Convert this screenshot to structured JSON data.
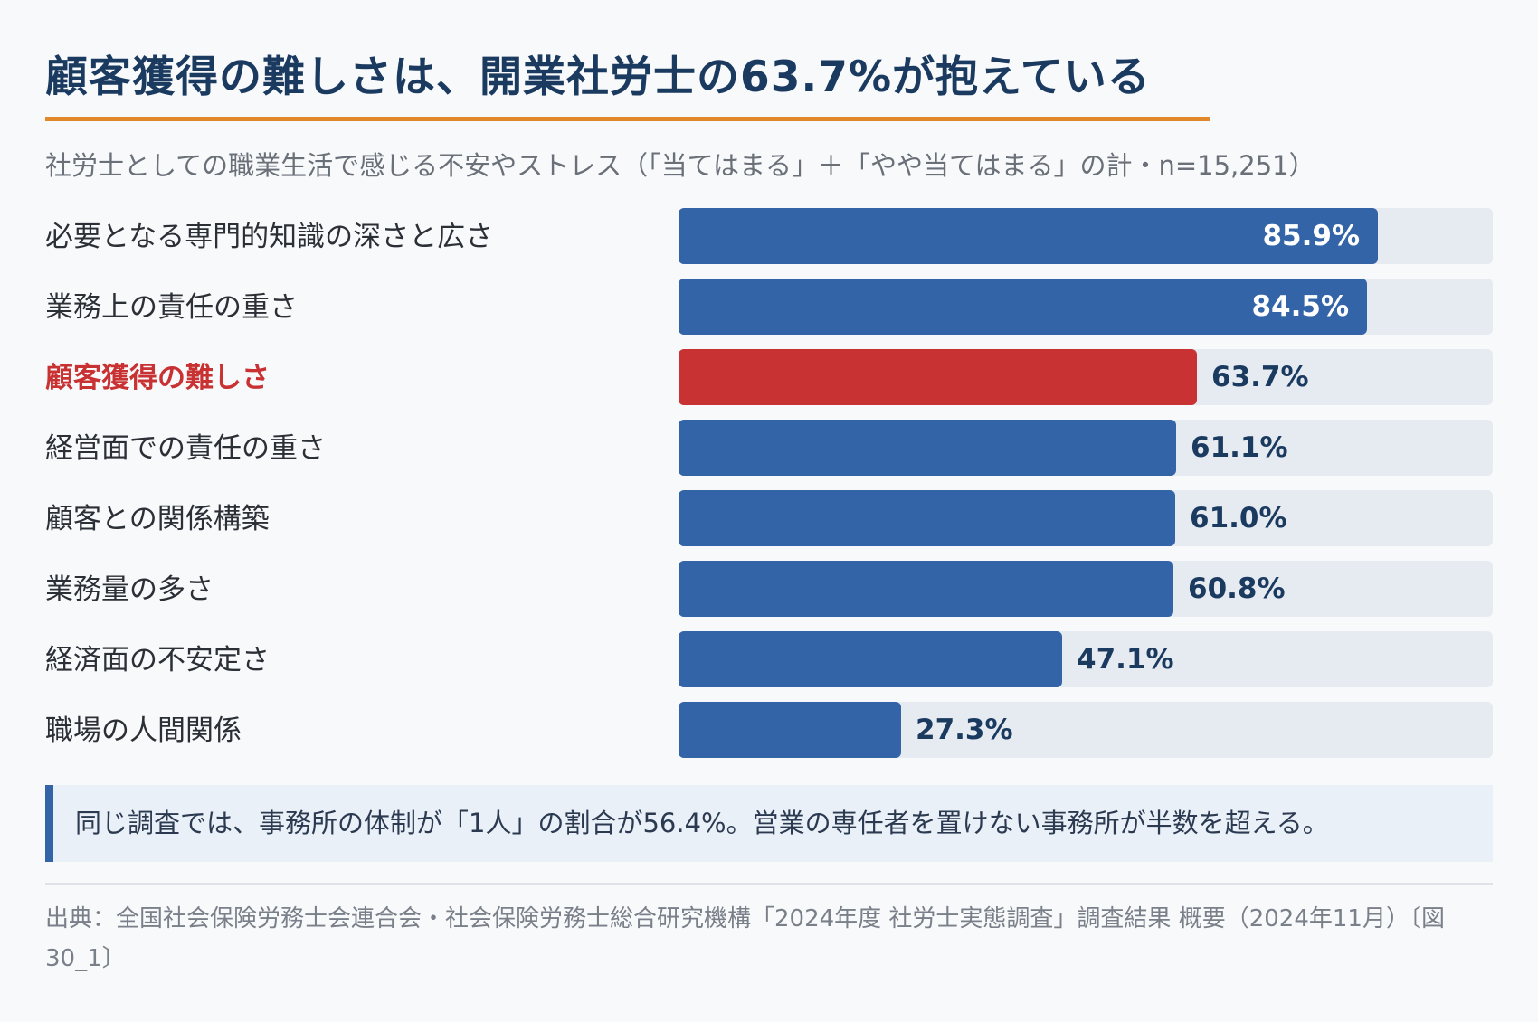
{
  "header": {
    "title": "顧客獲得の難しさは、開業社労士の63.7%が抱えている",
    "subtitle": "社労士としての職業生活で感じる不安やストレス（「当てはまる」＋「やや当てはまる」の計・n=15,251）"
  },
  "colors": {
    "bar": "#3464a8",
    "highlight": "#c83232",
    "track": "#e6ebf1",
    "accent_rule": "#e0882a",
    "title": "#1b3a60"
  },
  "chart_data": {
    "type": "bar",
    "orientation": "horizontal",
    "categories": [
      "必要となる専門的知識の深さと広さ",
      "業務上の責任の重さ",
      "顧客獲得の難しさ",
      "経営面での責任の重さ",
      "顧客との関係構築",
      "業務量の多さ",
      "経済面の不安定さ",
      "職場の人間関係"
    ],
    "values": [
      85.9,
      84.5,
      63.7,
      61.1,
      61.0,
      60.8,
      47.1,
      27.3
    ],
    "value_labels": [
      "85.9%",
      "84.5%",
      "63.7%",
      "61.1%",
      "61.0%",
      "60.8%",
      "47.1%",
      "27.3%"
    ],
    "highlight_index": 2,
    "unit": "%",
    "xlim": [
      0,
      100
    ]
  },
  "note": {
    "text": "同じ調査では、事務所の体制が「1人」の割合が56.4%。営業の専任者を置けない事務所が半数を超える。"
  },
  "source": {
    "text": "出典：全国社会保険労務士会連合会・社会保険労務士総合研究機構「2024年度 社労士実態調査」調査結果 概要（2024年11月）〔図30_1〕"
  }
}
